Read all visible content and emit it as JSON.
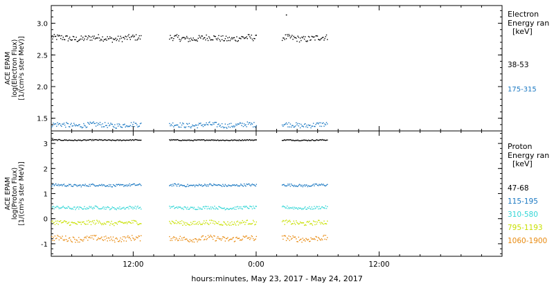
{
  "xlabel": "hours:minutes, May 23, 2017 - May 24, 2017",
  "xticks": [
    {
      "label": "12:00",
      "h": 12
    },
    {
      "label": "0:00",
      "h": 24
    },
    {
      "label": "12:00",
      "h": 36
    }
  ],
  "colors": {
    "e38_53": "#000000",
    "e175_315": "#1a78c2",
    "p47_68": "#000000",
    "p115_195": "#1a78c2",
    "p310_580": "#33d6d6",
    "p795_1193": "#c8e000",
    "p1060_1900": "#e88a10"
  },
  "chart_data": [
    {
      "type": "scatter",
      "ylabel": [
        "ACE EPAM",
        "log(Electron Flux)",
        "[1/(cm²s ster MeV)]"
      ],
      "ylim": [
        1.3,
        3.28
      ],
      "yticks": [
        "3.0",
        "2.5",
        "2.0",
        "1.5"
      ],
      "yticks_values": [
        3.0,
        2.5,
        2.0,
        1.5
      ],
      "x_range_hours": [
        4,
        48
      ],
      "legend_title": [
        "Electron",
        "Energy ran",
        "[keV]"
      ],
      "data_segments_hours": [
        [
          4,
          12.8
        ],
        [
          15.5,
          24
        ],
        [
          26.5,
          30.9
        ]
      ],
      "series": [
        {
          "name": "38-53",
          "color_key": "e38_53",
          "mean": 2.77,
          "spread": 0.05
        },
        {
          "name": "175-315",
          "color_key": "e175_315",
          "mean": 1.4,
          "spread": 0.04
        }
      ],
      "outliers": [
        {
          "x": 26.9,
          "y": 3.14
        }
      ]
    },
    {
      "type": "scatter",
      "ylabel": [
        "ACE EPAM",
        "log(Proton Flux)",
        "[1/(cm²s ster MeV)]"
      ],
      "ylim": [
        -1.5,
        3.5
      ],
      "yticks": [
        "3",
        "2",
        "1",
        "0",
        "-1"
      ],
      "yticks_values": [
        3,
        2,
        1,
        0,
        -1
      ],
      "x_range_hours": [
        4,
        48
      ],
      "legend_title": [
        "Proton",
        "Energy ran",
        "[keV]"
      ],
      "data_segments_hours": [
        [
          4,
          12.8
        ],
        [
          15.5,
          24
        ],
        [
          26.5,
          30.9
        ]
      ],
      "series": [
        {
          "name": "47-68",
          "color_key": "p47_68",
          "mean": 3.15,
          "spread": 0.02
        },
        {
          "name": "115-195",
          "color_key": "p115_195",
          "mean": 1.35,
          "spread": 0.05
        },
        {
          "name": "310-580",
          "color_key": "p310_580",
          "mean": 0.45,
          "spread": 0.06
        },
        {
          "name": "795-1193",
          "color_key": "p795_1193",
          "mean": -0.15,
          "spread": 0.09
        },
        {
          "name": "1060-1900",
          "color_key": "p1060_1900",
          "mean": -0.78,
          "spread": 0.11
        }
      ]
    }
  ]
}
